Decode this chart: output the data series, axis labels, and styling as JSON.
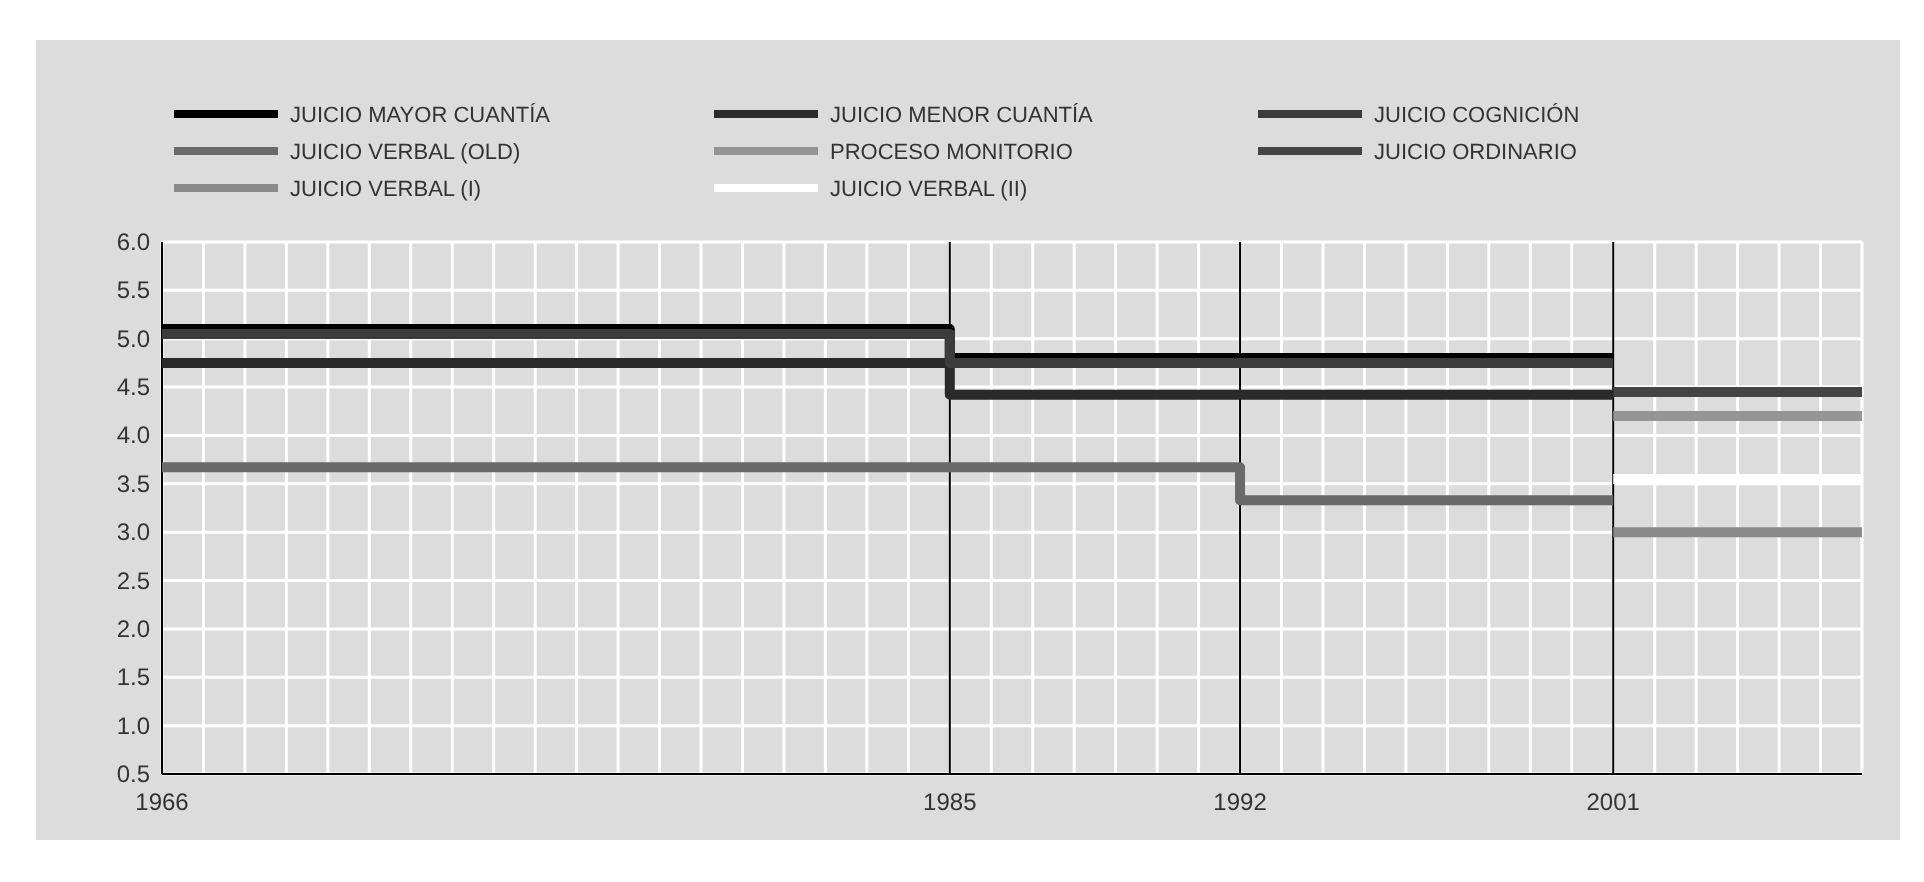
{
  "chart_data": {
    "type": "step",
    "xlim": [
      1966,
      2007
    ],
    "xticks": [
      1966,
      1985,
      1992,
      2001
    ],
    "ylim": [
      0.5,
      6.0
    ],
    "yticks": [
      {
        "value": 0.5,
        "label": "0.5"
      },
      {
        "value": 1,
        "label": "1.0"
      },
      {
        "value": 1.5,
        "label": "1.5"
      },
      {
        "value": 2,
        "label": "2.0"
      },
      {
        "value": 2.5,
        "label": "2.5"
      },
      {
        "value": 3,
        "label": "3.0"
      },
      {
        "value": 3.5,
        "label": "3.5"
      },
      {
        "value": 4,
        "label": "4.0"
      },
      {
        "value": 4.5,
        "label": "4.5"
      },
      {
        "value": 5,
        "label": "5.0"
      },
      {
        "value": 5.5,
        "label": "5.5"
      },
      {
        "value": 6,
        "label": "6.0"
      }
    ],
    "grid": true,
    "legend": "top left",
    "line_style": "solid",
    "marker": "none",
    "series": [
      {
        "name": "JUICIO MAYOR CUANTÍA",
        "color": "#000000",
        "x": [
          1966,
          1985,
          2001
        ],
        "values": [
          5.1,
          4.8,
          4.8
        ]
      },
      {
        "name": "JUICIO MENOR CUANTÍA",
        "color": "#2a2a2a",
        "x": [
          1966,
          1985,
          2001
        ],
        "values": [
          4.75,
          4.42,
          4.42
        ]
      },
      {
        "name": "JUICIO COGNICIÓN",
        "color": "#3c3c3c",
        "x": [
          1966,
          1985,
          2001
        ],
        "values": [
          5.05,
          4.75,
          4.75
        ]
      },
      {
        "name": "JUICIO VERBAL (OLD)",
        "color": "#6a6a6a",
        "x": [
          1966,
          1992,
          2001
        ],
        "values": [
          3.67,
          3.33,
          3.33
        ]
      },
      {
        "name": "PROCESO MONITORIO",
        "color": "#959595",
        "x": [
          2001,
          2007
        ],
        "values": [
          4.2,
          4.2
        ]
      },
      {
        "name": "JUICIO ORDINARIO",
        "color": "#444444",
        "x": [
          2001,
          2007
        ],
        "values": [
          4.45,
          4.45
        ]
      },
      {
        "name": "JUICIO VERBAL (I)",
        "color": "#8a8a8a",
        "x": [
          2001,
          2007
        ],
        "values": [
          3.0,
          3.0
        ]
      },
      {
        "name": "JUICIO VERBAL (II)",
        "color": "#ffffff",
        "x": [
          2001,
          2007
        ],
        "values": [
          3.55,
          3.55
        ]
      }
    ]
  }
}
